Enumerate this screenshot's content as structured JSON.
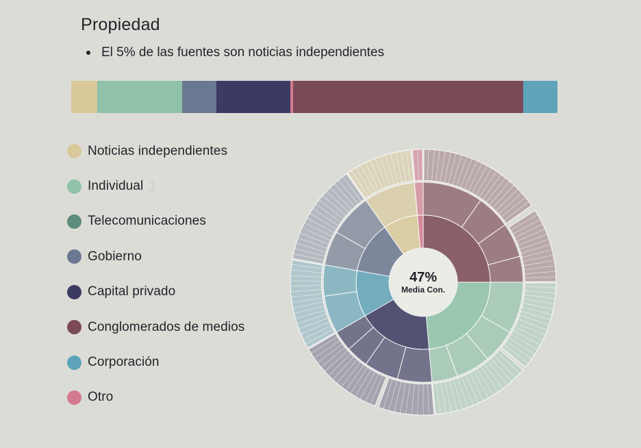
{
  "header": {
    "title": "Propiedad",
    "bullet": "El 5% de las fuentes son noticias independientes"
  },
  "colors": {
    "noticias": "#d9c99a",
    "individual": "#8fc2a8",
    "telecom": "#5e8c7c",
    "gobierno": "#6b7891",
    "capital": "#3b3a62",
    "conglomerados": "#7a4a56",
    "corporacion": "#5fa3b8",
    "otro": "#d27a8e"
  },
  "chart_data": [
    {
      "type": "bar",
      "orientation": "stacked-horizontal-100",
      "categories": [
        "Noticias independientes",
        "Individual",
        "Telecomunicaciones",
        "Gobierno",
        "Capital privado",
        "Otro",
        "Conglomerados de medios",
        "Corporación"
      ],
      "values": [
        5.3,
        17.6,
        0,
        7.0,
        15.2,
        0.6,
        47.4,
        7.0
      ]
    },
    {
      "type": "sunburst",
      "center_value": "47%",
      "center_label": "Media Con.",
      "rings": 3,
      "sectors": [
        {
          "name": "Conglomerados de medios",
          "value": 25
        },
        {
          "name": "Individual",
          "value": 22
        },
        {
          "name": "Capital privado",
          "value": 15
        },
        {
          "name": "Corporación",
          "value": 10
        },
        {
          "name": "Gobierno",
          "value": 13
        },
        {
          "name": "Noticias independientes",
          "value": 12
        },
        {
          "name": "Otro",
          "value": 2
        }
      ]
    }
  ],
  "legend": [
    {
      "label": "Noticias independientes",
      "color": "#d9c99a"
    },
    {
      "label": "Individual",
      "color": "#8fc2a8"
    },
    {
      "label": "Telecomunicaciones",
      "color": "#5e8c7c"
    },
    {
      "label": "Gobierno",
      "color": "#6b7891"
    },
    {
      "label": "Capital privado",
      "color": "#3b3a62"
    },
    {
      "label": "Conglomerados de medios",
      "color": "#7a4a56"
    },
    {
      "label": "Corporación",
      "color": "#5fa3b8"
    },
    {
      "label": "Otro",
      "color": "#d27a8e"
    }
  ]
}
